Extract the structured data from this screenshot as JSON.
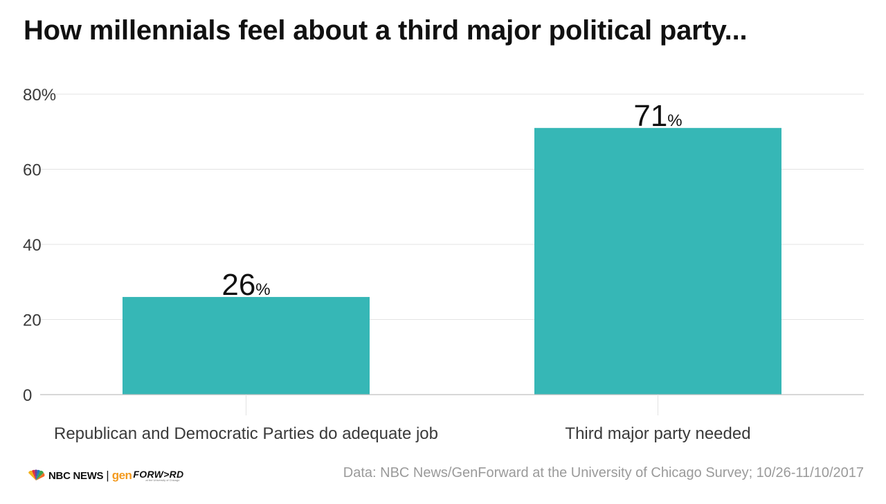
{
  "chart_data": {
    "type": "bar",
    "title": "How millennials feel about a third major political party...",
    "categories": [
      "Republican and Democratic Parties do adequate job",
      "Third major party needed"
    ],
    "values": [
      26,
      71
    ],
    "value_labels": [
      "26",
      "71"
    ],
    "value_suffix": "%",
    "y_ticks": [
      "0",
      "20",
      "40",
      "60",
      "80%"
    ],
    "y_tick_values": [
      0,
      20,
      40,
      60,
      80
    ],
    "ylim": [
      0,
      80
    ],
    "xlabel": "",
    "ylabel": "",
    "grid": true,
    "bar_color": "#36b7b6",
    "source": "Data: NBC News/GenForward at the University of Chicago Survey; 10/26-11/10/2017"
  },
  "footer": {
    "logo_nbc": "NBC NEWS",
    "logo_separator": "|",
    "logo_gen": "gen",
    "logo_forward": "FORW>RD",
    "logo_forward_sub": "at the University of Chicago"
  },
  "colors": {
    "bar": "#36b7b6",
    "grid": "#e3e3e3",
    "axis": "#bfbfbf",
    "source_text": "#9a9a9a",
    "gen_orange": "#f39a1f"
  }
}
